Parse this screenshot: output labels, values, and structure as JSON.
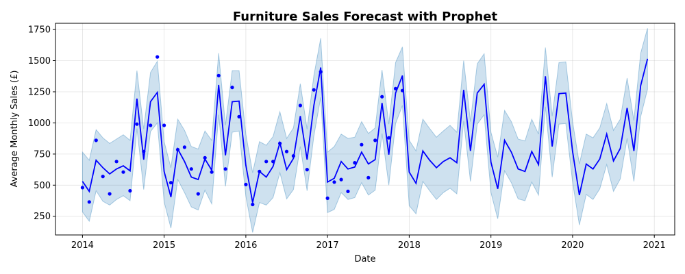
{
  "chart_data": {
    "type": "line",
    "title": "Furniture Sales Forecast with Prophet",
    "xlabel": "Date",
    "ylabel": "Average Monthly Sales (£)",
    "xlim": [
      2013.67,
      2021.25
    ],
    "ylim": [
      100,
      1800
    ],
    "x_ticks": [
      2014,
      2015,
      2016,
      2017,
      2018,
      2019,
      2020,
      2021
    ],
    "y_ticks": [
      250,
      500,
      750,
      1000,
      1250,
      1500,
      1750
    ],
    "grid": true,
    "colors": {
      "forecast": "#0000ff",
      "interval": "#1f77b4",
      "observed": "#0000ff"
    },
    "series": [
      {
        "type": "line",
        "x": [
          2014.0,
          2014.083,
          2014.167,
          2014.25,
          2014.333,
          2014.417,
          2014.5,
          2014.583,
          2014.667,
          2014.75,
          2014.833,
          2014.917,
          2015.0,
          2015.083,
          2015.167,
          2015.25,
          2015.333,
          2015.417,
          2015.5,
          2015.583,
          2015.667,
          2015.75,
          2015.833,
          2015.917,
          2016.0,
          2016.083,
          2016.167,
          2016.25,
          2016.333,
          2016.417,
          2016.5,
          2016.583,
          2016.667,
          2016.75,
          2016.833,
          2016.917,
          2017.0,
          2017.083,
          2017.167,
          2017.25,
          2017.333,
          2017.417,
          2017.5,
          2017.583,
          2017.667,
          2017.75,
          2017.833,
          2017.917,
          2018.0,
          2018.083,
          2018.167,
          2018.25,
          2018.333,
          2018.417,
          2018.5,
          2018.583,
          2018.667,
          2018.75,
          2018.833,
          2018.917,
          2019.0,
          2019.083,
          2019.167,
          2019.25,
          2019.333,
          2019.417,
          2019.5,
          2019.583,
          2019.667,
          2019.75,
          2019.833,
          2019.917,
          2020.0,
          2020.083,
          2020.167,
          2020.25,
          2020.333,
          2020.417,
          2020.5,
          2020.583,
          2020.667,
          2020.75,
          2020.833,
          2020.917
        ],
        "yhat": [
          530,
          450,
          700,
          640,
          590,
          630,
          655,
          615,
          1195,
          705,
          1170,
          1245,
          610,
          405,
          790,
          690,
          565,
          545,
          710,
          620,
          1305,
          740,
          1170,
          1175,
          660,
          360,
          610,
          565,
          650,
          840,
          625,
          715,
          1055,
          705,
          1140,
          1445,
          525,
          555,
          690,
          630,
          645,
          765,
          670,
          705,
          1160,
          745,
          1240,
          1380,
          605,
          515,
          775,
          700,
          640,
          690,
          720,
          680,
          1265,
          775,
          1240,
          1310,
          685,
          470,
          860,
          765,
          630,
          610,
          770,
          665,
          1375,
          810,
          1235,
          1240,
          770,
          420,
          670,
          630,
          710,
          910,
          695,
          795,
          1120,
          775,
          1300,
          1515
        ],
        "lower": [
          285,
          210,
          455,
          370,
          340,
          385,
          415,
          375,
          955,
          465,
          930,
          1000,
          365,
          155,
          545,
          440,
          325,
          300,
          460,
          350,
          1065,
          490,
          925,
          935,
          410,
          120,
          360,
          340,
          400,
          600,
          390,
          465,
          810,
          455,
          895,
          1205,
          280,
          305,
          440,
          385,
          400,
          520,
          420,
          460,
          915,
          500,
          995,
          1140,
          335,
          270,
          530,
          455,
          385,
          440,
          475,
          430,
          1015,
          530,
          990,
          1065,
          440,
          230,
          615,
          520,
          390,
          375,
          525,
          420,
          1130,
          565,
          990,
          995,
          525,
          180,
          425,
          385,
          470,
          665,
          450,
          550,
          875,
          530,
          1050,
          1270
        ],
        "upper": [
          765,
          700,
          945,
          880,
          835,
          870,
          905,
          860,
          1420,
          950,
          1405,
          1495,
          850,
          640,
          1030,
          940,
          810,
          790,
          935,
          860,
          1560,
          980,
          1420,
          1420,
          910,
          600,
          850,
          820,
          890,
          1090,
          875,
          960,
          1315,
          950,
          1380,
          1680,
          765,
          810,
          910,
          875,
          885,
          1010,
          915,
          960,
          1425,
          990,
          1485,
          1610,
          860,
          775,
          1030,
          955,
          885,
          935,
          980,
          925,
          1500,
          1010,
          1475,
          1555,
          925,
          725,
          1100,
          1010,
          870,
          855,
          1030,
          910,
          1605,
          1055,
          1485,
          1490,
          1010,
          670,
          910,
          880,
          960,
          1155,
          940,
          1030,
          1360,
          1020,
          1560,
          1760
        ]
      },
      {
        "type": "scatter",
        "x": [
          2014.0,
          2014.083,
          2014.167,
          2014.25,
          2014.333,
          2014.417,
          2014.5,
          2014.583,
          2014.667,
          2014.75,
          2014.833,
          2014.917,
          2015.0,
          2015.083,
          2015.167,
          2015.25,
          2015.333,
          2015.417,
          2015.5,
          2015.583,
          2015.667,
          2015.75,
          2015.833,
          2015.917,
          2016.0,
          2016.083,
          2016.167,
          2016.25,
          2016.333,
          2016.417,
          2016.5,
          2016.583,
          2016.667,
          2016.75,
          2016.833,
          2016.917,
          2017.0,
          2017.083,
          2017.167,
          2017.25,
          2017.333,
          2017.417,
          2017.5,
          2017.583,
          2017.667,
          2017.75,
          2017.833,
          2017.917
        ],
        "y": [
          480,
          365,
          860,
          570,
          430,
          690,
          605,
          455,
          990,
          770,
          980,
          1530,
          980,
          520,
          785,
          805,
          630,
          430,
          720,
          605,
          1380,
          630,
          1285,
          1050,
          505,
          345,
          610,
          690,
          690,
          835,
          770,
          735,
          1140,
          625,
          1265,
          1410,
          395,
          525,
          545,
          450,
          680,
          825,
          560,
          860,
          1210,
          880,
          1275,
          1260
        ]
      }
    ]
  }
}
